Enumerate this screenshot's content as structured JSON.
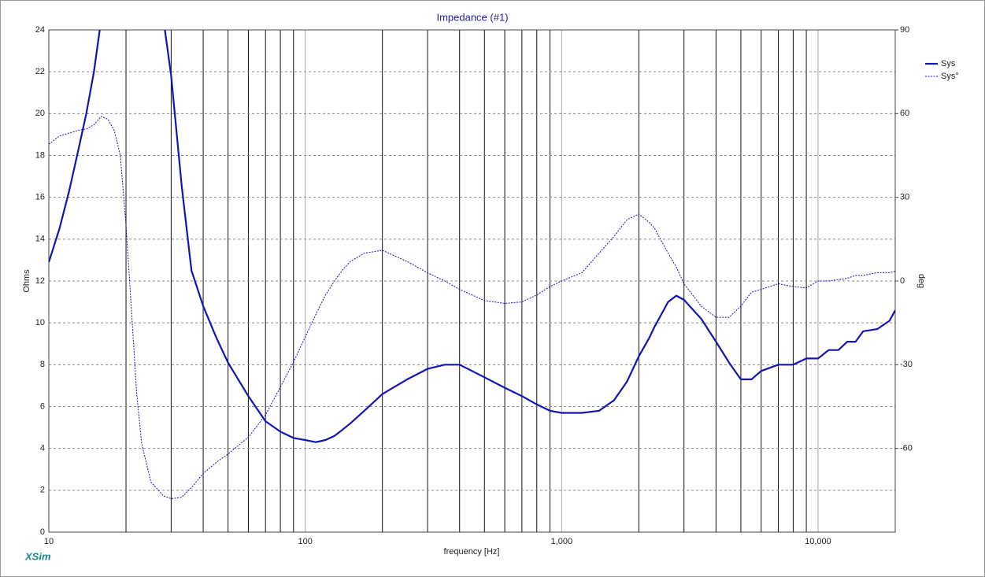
{
  "chart_data": {
    "type": "line",
    "title": "Impedance (#1)",
    "xlabel": "frequency [Hz]",
    "ylabel": "Ohms",
    "y2label": "deg",
    "footer": "XSim",
    "xscale": "log",
    "grid": true,
    "legend": "upper right",
    "xlim": [
      10,
      20000
    ],
    "xticks": [
      10,
      100,
      {
        "value": 1000,
        "label": "1,000"
      },
      {
        "value": 10000,
        "label": "10,000"
      }
    ],
    "ylim": [
      0,
      24
    ],
    "yticks": [
      0,
      2,
      4,
      6,
      8,
      10,
      12,
      14,
      16,
      18,
      20,
      22,
      24
    ],
    "y2lim": [
      -90,
      90
    ],
    "y2ticks": [
      -60,
      -30,
      0,
      30,
      60,
      90
    ],
    "x": [
      10,
      11,
      12,
      13,
      14,
      15,
      16,
      17,
      18,
      19,
      20,
      21,
      22,
      23,
      25,
      28,
      30,
      33,
      36,
      40,
      45,
      50,
      60,
      70,
      80,
      90,
      100,
      110,
      120,
      130,
      140,
      150,
      170,
      200,
      250,
      300,
      350,
      400,
      500,
      600,
      700,
      800,
      900,
      1000,
      1200,
      1400,
      1600,
      1800,
      2000,
      2200,
      2300,
      2600,
      2800,
      3000,
      3500,
      4000,
      4500,
      5000,
      5500,
      6000,
      7000,
      8000,
      9000,
      10000,
      11000,
      12000,
      13000,
      14000,
      15000,
      17000,
      19000,
      20000
    ],
    "series": [
      {
        "name": "Sys",
        "color": "#1414b4",
        "style": "solid",
        "values": [
          12.9,
          14.5,
          16.3,
          18.2,
          20,
          22,
          24.5,
          null,
          null,
          null,
          null,
          null,
          null,
          null,
          null,
          24.5,
          21.8,
          16.5,
          12.5,
          10.8,
          9.3,
          8.1,
          6.5,
          5.3,
          4.8,
          4.5,
          4.4,
          4.3,
          4.4,
          4.6,
          4.9,
          5.2,
          5.8,
          6.6,
          7.3,
          7.8,
          8.0,
          8.0,
          7.4,
          6.9,
          6.5,
          6.1,
          5.8,
          5.7,
          5.7,
          5.8,
          6.3,
          7.2,
          8.4,
          9.3,
          9.8,
          11.0,
          11.3,
          11.1,
          10.2,
          9.1,
          8.1,
          7.3,
          7.3,
          7.7,
          8.0,
          8.0,
          8.3,
          8.3,
          8.7,
          8.7,
          9.1,
          9.1,
          9.6,
          9.7,
          10.1,
          10.6
        ]
      },
      {
        "name": "Sys°",
        "color": "#1414b4",
        "style": "dashed",
        "axis": "y2",
        "values": [
          49,
          52,
          53,
          54,
          54.5,
          56,
          59,
          58,
          54,
          45,
          20,
          -10,
          -40,
          -58,
          -72,
          -77,
          -78,
          -77.5,
          -74,
          -69,
          -65,
          -62,
          -56,
          -48,
          -38,
          -29,
          -20,
          -12,
          -5,
          0,
          4,
          7,
          10,
          11,
          7,
          3,
          0,
          -3,
          -7,
          -8,
          -7.5,
          -5,
          -2,
          0,
          3,
          10,
          16,
          22,
          24,
          21,
          19,
          10,
          5,
          -1,
          -9,
          -13,
          -13,
          -9,
          -4,
          -3,
          -1,
          -2,
          -2.5,
          0,
          0,
          0.5,
          1,
          2,
          2,
          3,
          3,
          3.5
        ]
      }
    ]
  }
}
